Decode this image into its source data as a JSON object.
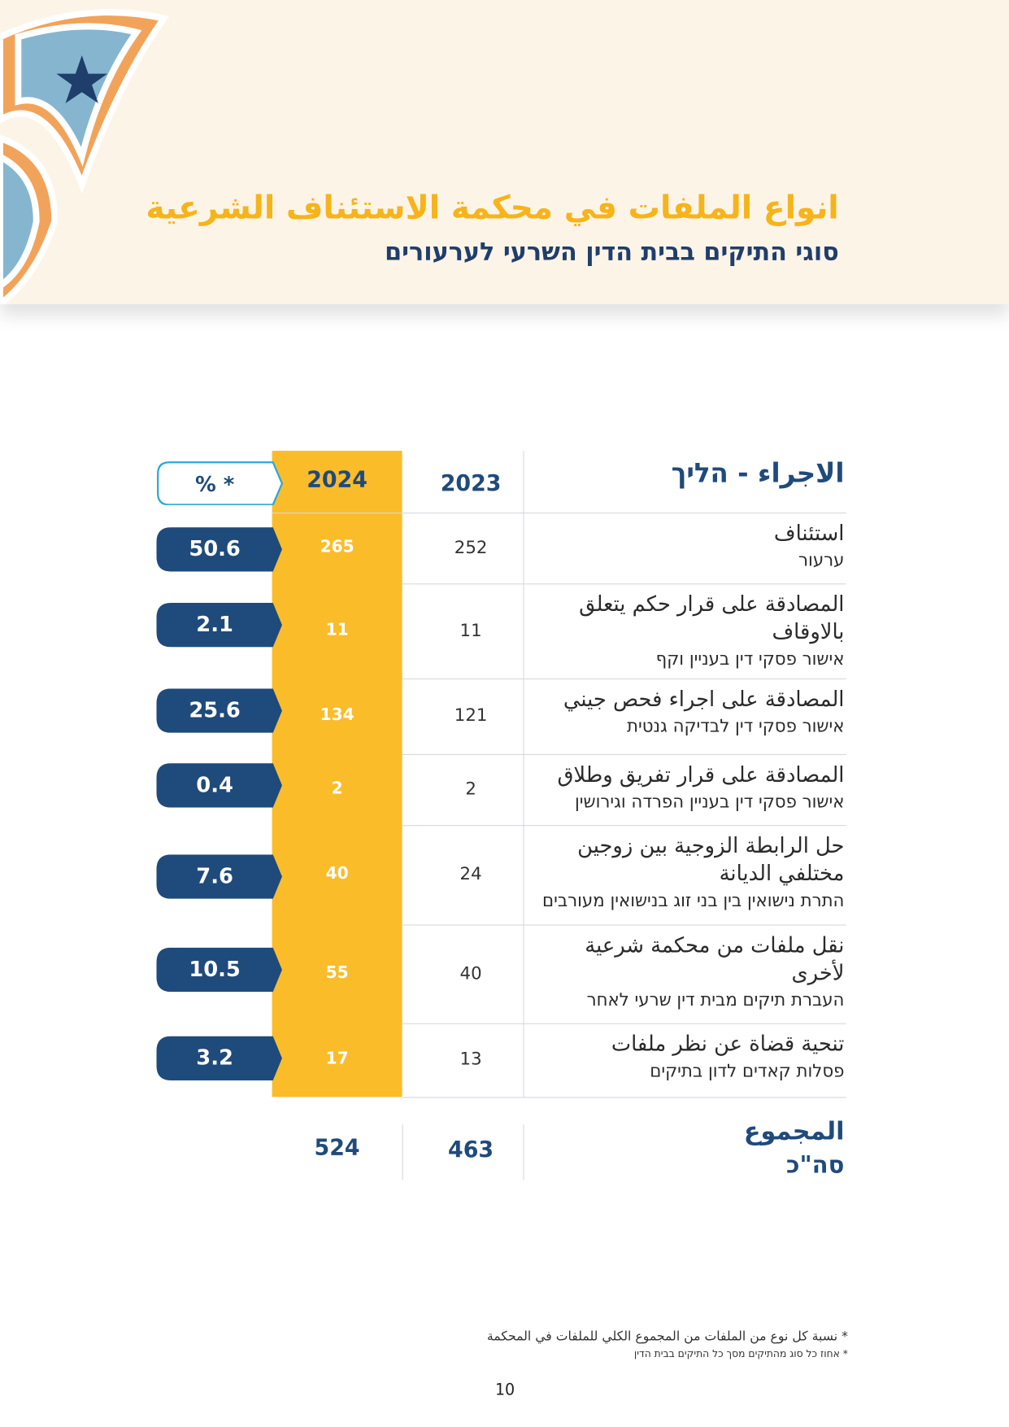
{
  "header": {
    "title_ar": "انواع الملفات في محكمة الاستئناف الشرعية",
    "title_he": "סוגי התיקים בבית הדין השרעי לערעורים"
  },
  "table": {
    "columns": {
      "action": "الاجراء - הליך",
      "y2023": "2023",
      "y2024": "2024",
      "pct": "% *"
    },
    "rows": [
      {
        "ar": "استئناف",
        "he": "ערעור",
        "y2023": 252,
        "y2024": 265,
        "pct": 50.6
      },
      {
        "ar": "المصادقة على قرار حكم يتعلق بالاوقاف",
        "he": "אישור פסקי דין בעניין וקף",
        "y2023": 11,
        "y2024": 11,
        "pct": 2.1
      },
      {
        "ar": "المصادقة على اجراء فحص جيني",
        "he": "אישור פסקי דין לבדיקה גנטית",
        "y2023": 121,
        "y2024": 134,
        "pct": 25.6
      },
      {
        "ar": "المصادقة على قرار تفريق وطلاق",
        "he": "אישור פסקי דין בעניין הפרדה וגירושין",
        "y2023": 2,
        "y2024": 2,
        "pct": 0.4
      },
      {
        "ar": "حل الرابطة الزوجية بين زوجين مختلفي الديانة",
        "he": "התרת נישואין בין בני זוג בנישואין מעורבים",
        "y2023": 24,
        "y2024": 40,
        "pct": 7.6
      },
      {
        "ar": "نقل ملفات من محكمة شرعية لأخرى",
        "he": "העברת תיקים מבית דין שרעי לאחר",
        "y2023": 40,
        "y2024": 55,
        "pct": 10.5
      },
      {
        "ar": "تنحية قضاة عن نظر ملفات",
        "he": "פסלות קאדים לדון בתיקים",
        "y2023": 13,
        "y2024": 17,
        "pct": 3.2
      }
    ],
    "total": {
      "ar": "المجموع",
      "he": "סה\"כ",
      "y2023": 463,
      "y2024": 524
    }
  },
  "footnotes": [
    "* نسبة كل نوع من الملفات من المجموع الكلي للملفات في المحكمة",
    "* אחוז כל סוג מהתיקים מסך כל התיקים בבית הדין"
  ],
  "page_number": "10"
}
